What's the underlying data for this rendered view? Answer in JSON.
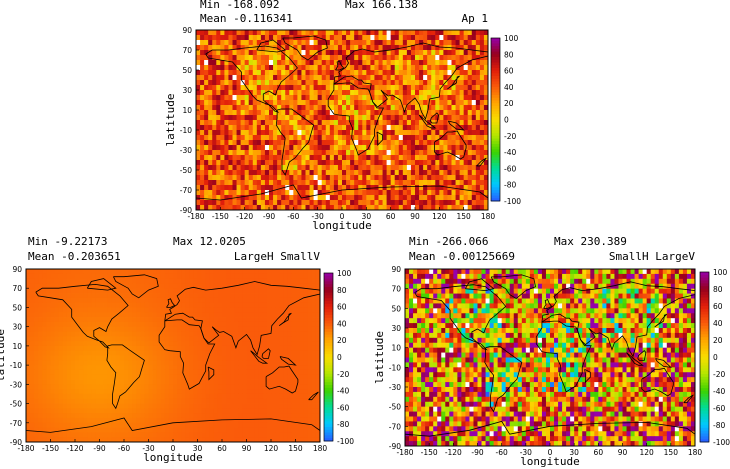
{
  "chart_data": [
    {
      "type": "heatmap",
      "title": "Ap 1",
      "stats": {
        "min_label": "Min",
        "min": "-168.092",
        "max_label": "Max",
        "max": "166.138",
        "mean_label": "Mean",
        "mean": "-0.116341"
      },
      "xlabel": "longitude",
      "ylabel": "latitude",
      "xticks": [
        "-180",
        "-150",
        "-120",
        "-90",
        "-60",
        "-30",
        "0",
        "30",
        "60",
        "90",
        "120",
        "150",
        "180"
      ],
      "yticks": [
        "90",
        "70",
        "50",
        "30",
        "10",
        "-10",
        "-30",
        "-50",
        "-70",
        "-90"
      ],
      "xlim": [
        -180,
        180
      ],
      "ylim": [
        -90,
        90
      ],
      "colorbar": {
        "ticks": [
          "100",
          "80",
          "60",
          "40",
          "20",
          "0",
          "-20",
          "-40",
          "-60",
          "-80",
          "-100"
        ],
        "range": [
          -100,
          100
        ]
      },
      "field": "noisy",
      "base_value": 45,
      "noise_amplitude": 35
    },
    {
      "type": "heatmap",
      "title": "LargeH  SmallV",
      "stats": {
        "min_label": "Min",
        "min": "-9.22173",
        "max_label": "Max",
        "max": "12.0205",
        "mean_label": "Mean",
        "mean": "-0.203651"
      },
      "xlabel": "longitude",
      "ylabel": "latitude",
      "xticks": [
        "-180",
        "-150",
        "-120",
        "-90",
        "-60",
        "-30",
        "0",
        "30",
        "60",
        "90",
        "120",
        "150",
        "180"
      ],
      "yticks": [
        "90",
        "70",
        "50",
        "30",
        "10",
        "-10",
        "-30",
        "-50",
        "-70",
        "-90"
      ],
      "xlim": [
        -180,
        180
      ],
      "ylim": [
        -90,
        90
      ],
      "colorbar": {
        "ticks": [
          "100",
          "80",
          "60",
          "40",
          "20",
          "0",
          "-20",
          "-40",
          "-60",
          "-80",
          "-100"
        ],
        "range": [
          -100,
          100
        ]
      },
      "field": "smooth",
      "base_value": 38,
      "noise_amplitude": 0
    },
    {
      "type": "heatmap",
      "title": "SmallH  LargeV",
      "stats": {
        "min_label": "Min",
        "min": "-266.066",
        "max_label": "Max",
        "max": "230.389",
        "mean_label": "Mean",
        "mean": "-0.00125669"
      },
      "xlabel": "longitude",
      "ylabel": "latitude",
      "xticks": [
        "-180",
        "-150",
        "-120",
        "-90",
        "-60",
        "-30",
        "0",
        "30",
        "60",
        "90",
        "120",
        "150",
        "180"
      ],
      "yticks": [
        "90",
        "70",
        "50",
        "30",
        "10",
        "-10",
        "-30",
        "-50",
        "-70",
        "-90"
      ],
      "xlim": [
        -180,
        180
      ],
      "ylim": [
        -90,
        90
      ],
      "colorbar": {
        "ticks": [
          "100",
          "80",
          "60",
          "40",
          "20",
          "0",
          "-20",
          "-40",
          "-60",
          "-80",
          "-100"
        ],
        "range": [
          -100,
          100
        ]
      },
      "field": "very-noisy",
      "base_value": 35,
      "noise_amplitude": 75
    }
  ]
}
